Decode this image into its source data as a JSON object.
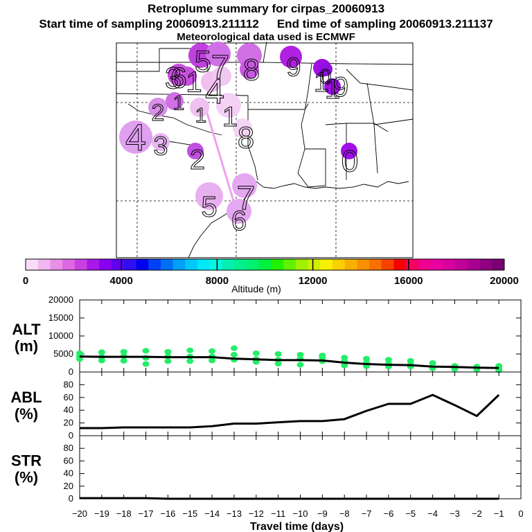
{
  "header": {
    "title": "Retroplume summary for cirpas_20060913",
    "start_label": "Start time of sampling 20060913.211112",
    "end_label": "End time of sampling 20060913.211137",
    "met_label": "Meteorological data used is ECMWF"
  },
  "map": {
    "labels": [
      {
        "text": "4",
        "size": "large"
      },
      {
        "text": "3",
        "size": "medium"
      },
      {
        "text": "2",
        "size": "medium"
      },
      {
        "text": "1",
        "size": "medium"
      },
      {
        "text": "6",
        "size": "large"
      },
      {
        "text": "5",
        "size": "large"
      },
      {
        "text": "7",
        "size": "medium"
      },
      {
        "text": "8",
        "size": "large"
      },
      {
        "text": "9",
        "size": "large"
      },
      {
        "text": "0",
        "size": "large"
      },
      {
        "text": "1",
        "size": "large"
      },
      {
        "text": "4",
        "size": "large"
      },
      {
        "text": "1",
        "size": "medium"
      },
      {
        "text": "1",
        "size": "medium"
      },
      {
        "text": "8",
        "size": "large"
      },
      {
        "text": "5",
        "size": "large"
      },
      {
        "text": "7",
        "size": "large"
      },
      {
        "text": "6",
        "size": "large"
      },
      {
        "text": "2",
        "size": "large"
      },
      {
        "text": "0",
        "size": "large"
      },
      {
        "text": "1",
        "size": "large"
      },
      {
        "text": "3",
        "size": "large"
      },
      {
        "text": "1",
        "size": "large"
      },
      {
        "text": "9",
        "size": "large"
      }
    ]
  },
  "colorbar": {
    "axis_label": "Altitude (m)",
    "tick_labels": [
      "0",
      "4000",
      "8000",
      "12000",
      "16000",
      "20000"
    ],
    "colors": [
      "#f8dcf8",
      "#f0b8f0",
      "#e890e8",
      "#dc68e4",
      "#c840e0",
      "#a818e8",
      "#8800f0",
      "#6000f0",
      "#3010f0",
      "#0000f0",
      "#0040f8",
      "#0070f8",
      "#00a0f8",
      "#00c8f8",
      "#00e8f8",
      "#00f8e0",
      "#00f0b0",
      "#00f090",
      "#00f070",
      "#00f040",
      "#20f000",
      "#60f000",
      "#a0f000",
      "#d0f000",
      "#f8f000",
      "#f8d000",
      "#f8b000",
      "#f89000",
      "#f87000",
      "#f84000",
      "#f80000",
      "#f80060",
      "#f00090",
      "#e800a0",
      "#d800a0",
      "#c00098",
      "#a80090",
      "#900080",
      "#780070"
    ]
  },
  "chart_data": [
    {
      "type": "scatter+line",
      "panel": "ALT",
      "ylabel": "ALT (m)",
      "ylabel_lines": [
        "ALT",
        "(m)"
      ],
      "ylim": [
        0,
        20000
      ],
      "yticks": [
        "20000",
        "15000",
        "10000",
        "5000",
        "0"
      ],
      "x": [
        -20,
        -19,
        -18,
        -17,
        -16,
        -15,
        -14,
        -13,
        -12,
        -11,
        -10,
        -9,
        -8,
        -7,
        -6,
        -5,
        -4,
        -3,
        -2,
        -1
      ],
      "median_line": [
        4300,
        4200,
        4200,
        4200,
        4100,
        4100,
        4100,
        3700,
        3500,
        3300,
        3300,
        3200,
        2600,
        2200,
        2000,
        1900,
        1500,
        1400,
        1200,
        1100
      ],
      "point_color": "#22ee66",
      "points": [
        [
          -20,
          3600
        ],
        [
          -20,
          4300
        ],
        [
          -20,
          5200
        ],
        [
          -19,
          3200
        ],
        [
          -19,
          4200
        ],
        [
          -19,
          5500
        ],
        [
          -18,
          3100
        ],
        [
          -18,
          4400
        ],
        [
          -18,
          5600
        ],
        [
          -17,
          2200
        ],
        [
          -17,
          3900
        ],
        [
          -17,
          5900
        ],
        [
          -16,
          3000
        ],
        [
          -16,
          4300
        ],
        [
          -16,
          5600
        ],
        [
          -15,
          3000
        ],
        [
          -15,
          4300
        ],
        [
          -15,
          6000
        ],
        [
          -14,
          3200
        ],
        [
          -14,
          4300
        ],
        [
          -14,
          5800
        ],
        [
          -13,
          3400
        ],
        [
          -13,
          4800
        ],
        [
          -13,
          6600
        ],
        [
          -12,
          2800
        ],
        [
          -12,
          3600
        ],
        [
          -12,
          5200
        ],
        [
          -11,
          2300
        ],
        [
          -11,
          3400
        ],
        [
          -11,
          5000
        ],
        [
          -10,
          2000
        ],
        [
          -10,
          3600
        ],
        [
          -10,
          4800
        ],
        [
          -9,
          3000
        ],
        [
          -9,
          4000
        ],
        [
          -9,
          4600
        ],
        [
          -8,
          1800
        ],
        [
          -8,
          2900
        ],
        [
          -8,
          4000
        ],
        [
          -7,
          1600
        ],
        [
          -7,
          2600
        ],
        [
          -7,
          3700
        ],
        [
          -6,
          1500
        ],
        [
          -6,
          2300
        ],
        [
          -6,
          3400
        ],
        [
          -5,
          1500
        ],
        [
          -5,
          2100
        ],
        [
          -5,
          3100
        ],
        [
          -4,
          1000
        ],
        [
          -4,
          1500
        ],
        [
          -4,
          2500
        ],
        [
          -3,
          800
        ],
        [
          -3,
          1300
        ],
        [
          -3,
          1700
        ],
        [
          -2,
          700
        ],
        [
          -2,
          1100
        ],
        [
          -2,
          1500
        ],
        [
          -1,
          500
        ],
        [
          -1,
          1100
        ],
        [
          -1,
          1700
        ]
      ]
    },
    {
      "type": "line",
      "panel": "ABL",
      "ylabel": "ABL (%)",
      "ylabel_lines": [
        "ABL",
        "(%)"
      ],
      "ylim": [
        0,
        100
      ],
      "yticks": [
        "80",
        "60",
        "40",
        "20",
        "0"
      ],
      "x": [
        -20,
        -19,
        -18,
        -17,
        -16,
        -15,
        -14,
        -13,
        -12,
        -11,
        -10,
        -9,
        -8,
        -7,
        -6,
        -5,
        -4,
        -3,
        -2,
        -1
      ],
      "values": [
        12,
        12,
        13,
        13,
        13,
        13,
        15,
        19,
        19,
        21,
        23,
        23,
        26,
        39,
        50,
        50,
        64,
        48,
        31,
        64
      ]
    },
    {
      "type": "line",
      "panel": "STR",
      "ylabel": "STR (%)",
      "ylabel_lines": [
        "STR",
        "(%)"
      ],
      "ylim": [
        0,
        100
      ],
      "yticks": [
        "80",
        "60",
        "40",
        "20",
        "0"
      ],
      "x": [
        -20,
        -19,
        -18,
        -17,
        -16,
        -15,
        -14,
        -13,
        -12,
        -11,
        -10,
        -9,
        -8,
        -7,
        -6,
        -5,
        -4,
        -3,
        -2,
        -1
      ],
      "values": [
        1,
        1,
        1,
        1,
        0,
        0,
        0,
        0,
        0,
        0,
        0,
        0,
        0,
        0,
        0,
        0,
        0,
        0,
        0,
        0
      ]
    }
  ],
  "xaxis": {
    "label": "Travel time (days)",
    "tick_labels": [
      "−20",
      "−19",
      "−18",
      "−17",
      "−16",
      "−15",
      "−14",
      "−13",
      "−12",
      "−11",
      "−10",
      "−9",
      "−8",
      "−7",
      "−6",
      "−5",
      "−4",
      "−3",
      "−2",
      "−1",
      "0"
    ]
  }
}
